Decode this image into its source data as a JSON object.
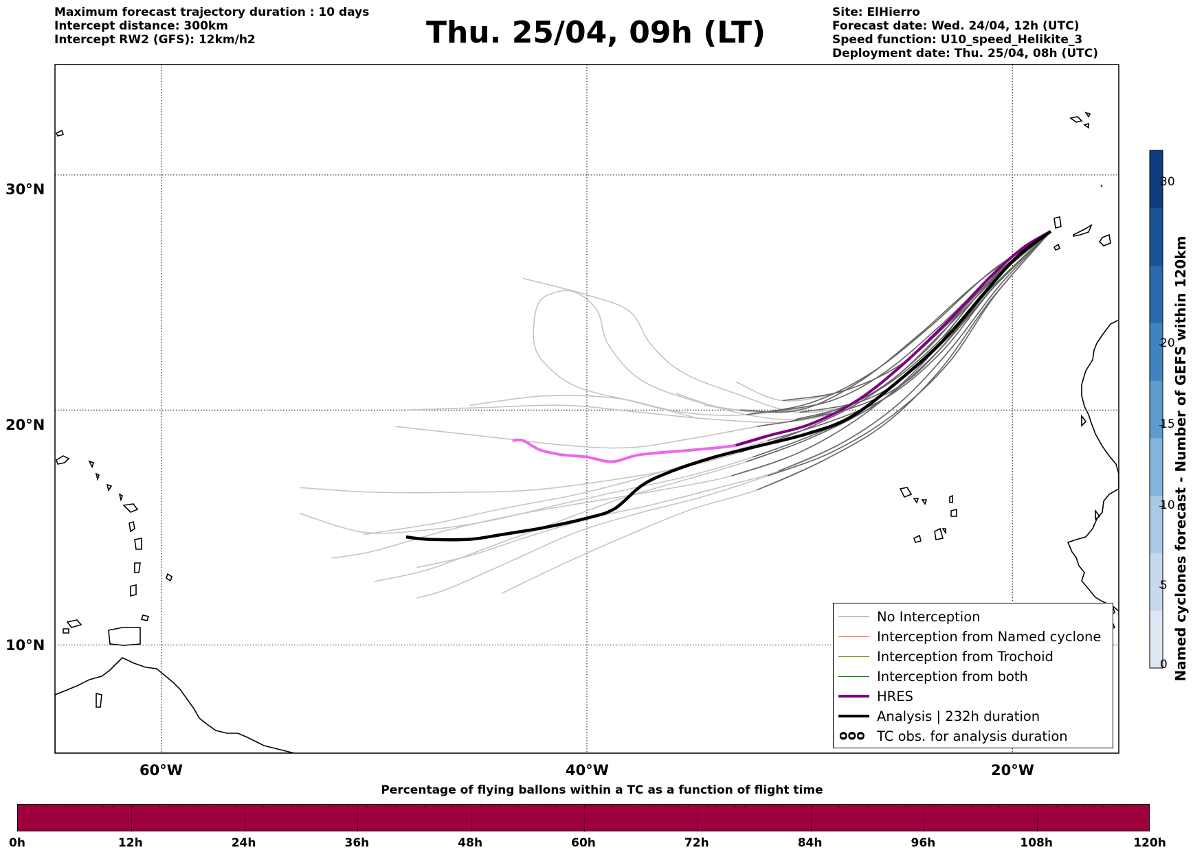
{
  "header": {
    "left": [
      "Maximum forecast trajectory duration : 10 days",
      "Intercept distance: 300km",
      "Intercept RW2 (GFS):  12km/h2"
    ],
    "title": "Thu. 25/04, 09h (LT)",
    "right": [
      "Site: ElHierro",
      "Forecast date: Wed. 24/04, 12h (UTC)",
      "Speed function: U10_speed_Helikite_3",
      "Deployment date: Thu. 25/04, 08h (UTC)"
    ]
  },
  "map": {
    "lon_ticks": [
      "60°W",
      "40°W",
      "20°W"
    ],
    "lat_ticks": [
      "30°N",
      "20°N",
      "10°N"
    ],
    "lon_range": [
      -65,
      -15
    ],
    "lat_range": [
      5.4,
      34.7
    ],
    "site": {
      "lon": -18.2,
      "lat": 27.6
    },
    "colors": {
      "no_interception": "#666666",
      "no_interception_light": "#c4c4c4",
      "hres": "#800080",
      "hres_projected": "#ee66ee",
      "analysis": "#000000",
      "named_cyclone": "#ff5a1f",
      "trochoid": "#808000",
      "both": "#008000"
    }
  },
  "chart_data": {
    "type": "line",
    "hres": [
      [
        -18.2,
        27.6
      ],
      [
        -19.5,
        26.9
      ],
      [
        -21.0,
        25.7
      ],
      [
        -23.0,
        23.8
      ],
      [
        -25.2,
        21.9
      ],
      [
        -27.3,
        20.4
      ],
      [
        -29.5,
        19.4
      ],
      [
        -31.5,
        18.9
      ],
      [
        -33.0,
        18.5
      ],
      [
        -35.0,
        18.3
      ],
      [
        -37.5,
        18.1
      ],
      [
        -38.8,
        17.8
      ],
      [
        -40.0,
        18.0
      ],
      [
        -41.2,
        18.1
      ],
      [
        -42.2,
        18.3
      ],
      [
        -43.0,
        18.7
      ],
      [
        -43.5,
        18.7
      ]
    ],
    "analysis": [
      [
        -18.2,
        27.6
      ],
      [
        -19.8,
        26.5
      ],
      [
        -21.3,
        25.0
      ],
      [
        -23.2,
        23.0
      ],
      [
        -25.4,
        21.2
      ],
      [
        -27.6,
        19.7
      ],
      [
        -29.6,
        19.0
      ],
      [
        -31.8,
        18.5
      ],
      [
        -34.0,
        18.0
      ],
      [
        -36.0,
        17.4
      ],
      [
        -37.4,
        16.8
      ],
      [
        -38.7,
        15.8
      ],
      [
        -40.0,
        15.4
      ],
      [
        -42.0,
        15.0
      ],
      [
        -44.0,
        14.7
      ],
      [
        -45.5,
        14.5
      ],
      [
        -47.5,
        14.5
      ],
      [
        -48.5,
        14.6
      ]
    ],
    "members": [
      [
        [
          -18.2,
          27.6
        ],
        [
          -20.8,
          25.8
        ],
        [
          -23.5,
          23.5
        ],
        [
          -26.0,
          21.6
        ],
        [
          -28.5,
          20.4
        ],
        [
          -31.5,
          19.9
        ],
        [
          -34.5,
          20.2
        ]
      ],
      [
        [
          -18.2,
          27.6
        ],
        [
          -20.5,
          26.0
        ],
        [
          -23.0,
          23.7
        ],
        [
          -25.3,
          21.9
        ],
        [
          -28.0,
          20.8
        ],
        [
          -30.8,
          20.4
        ],
        [
          -33.0,
          21.2
        ]
      ],
      [
        [
          -18.2,
          27.6
        ],
        [
          -21.0,
          25.5
        ],
        [
          -23.6,
          22.8
        ],
        [
          -26.2,
          20.9
        ],
        [
          -29.0,
          19.8
        ],
        [
          -32.0,
          19.3
        ],
        [
          -35.0,
          18.8
        ],
        [
          -38.0,
          18.4
        ],
        [
          -41.0,
          18.5
        ],
        [
          -45.0,
          18.9
        ],
        [
          -49.0,
          19.3
        ]
      ],
      [
        [
          -18.2,
          27.6
        ],
        [
          -20.9,
          25.2
        ],
        [
          -23.3,
          22.5
        ],
        [
          -25.8,
          20.6
        ],
        [
          -28.6,
          19.5
        ],
        [
          -31.5,
          18.7
        ],
        [
          -34.5,
          17.9
        ],
        [
          -37.5,
          17.1
        ],
        [
          -40.5,
          16.4
        ],
        [
          -44.0,
          15.8
        ],
        [
          -47.0,
          15.2
        ],
        [
          -50.5,
          14.7
        ]
      ],
      [
        [
          -18.2,
          27.6
        ],
        [
          -21.2,
          25.0
        ],
        [
          -23.8,
          22.2
        ],
        [
          -26.5,
          20.2
        ],
        [
          -29.5,
          18.8
        ],
        [
          -32.5,
          17.8
        ],
        [
          -35.5,
          17.0
        ],
        [
          -38.5,
          16.2
        ],
        [
          -41.5,
          15.2
        ],
        [
          -44.5,
          14.2
        ],
        [
          -47.5,
          13.2
        ],
        [
          -50.0,
          12.7
        ]
      ],
      [
        [
          -18.2,
          27.6
        ],
        [
          -21.0,
          24.7
        ],
        [
          -23.4,
          21.7
        ],
        [
          -26.0,
          19.4
        ],
        [
          -29.0,
          17.8
        ],
        [
          -32.0,
          16.6
        ],
        [
          -35.0,
          15.8
        ],
        [
          -38.0,
          14.7
        ],
        [
          -41.0,
          13.5
        ],
        [
          -44.0,
          12.2
        ]
      ],
      [
        [
          -18.2,
          27.6
        ],
        [
          -20.6,
          25.5
        ],
        [
          -22.8,
          23.2
        ],
        [
          -25.0,
          21.2
        ],
        [
          -27.5,
          20.1
        ],
        [
          -30.5,
          19.5
        ],
        [
          -34.0,
          19.6
        ],
        [
          -37.5,
          19.9
        ],
        [
          -41.0,
          20.2
        ],
        [
          -45.0,
          20.1
        ],
        [
          -48.5,
          20.0
        ]
      ],
      [
        [
          -18.2,
          27.6
        ],
        [
          -20.8,
          24.9
        ],
        [
          -23.0,
          22.0
        ],
        [
          -25.6,
          19.8
        ],
        [
          -28.5,
          18.2
        ],
        [
          -31.5,
          17.2
        ],
        [
          -34.6,
          16.3
        ],
        [
          -37.6,
          15.6
        ],
        [
          -40.5,
          14.8
        ],
        [
          -43.5,
          13.6
        ],
        [
          -46.5,
          12.4
        ],
        [
          -48.0,
          12.0
        ]
      ],
      [
        [
          -18.2,
          27.6
        ],
        [
          -21.3,
          25.3
        ],
        [
          -24.0,
          22.6
        ],
        [
          -26.7,
          20.6
        ],
        [
          -29.7,
          19.2
        ],
        [
          -32.8,
          18.2
        ],
        [
          -35.8,
          17.5
        ],
        [
          -39.0,
          17.0
        ],
        [
          -42.5,
          16.6
        ],
        [
          -46.0,
          16.5
        ],
        [
          -50.0,
          16.5
        ],
        [
          -53.5,
          16.7
        ]
      ],
      [
        [
          -18.2,
          27.6
        ],
        [
          -20.4,
          25.9
        ],
        [
          -22.5,
          23.6
        ],
        [
          -24.8,
          21.6
        ],
        [
          -27.0,
          20.4
        ],
        [
          -30.0,
          19.9
        ],
        [
          -33.0,
          20.7
        ],
        [
          -35.5,
          21.6
        ],
        [
          -37.0,
          22.8
        ],
        [
          -38.0,
          24.2
        ],
        [
          -40.0,
          24.9
        ],
        [
          -43.0,
          25.6
        ]
      ],
      [
        [
          -18.2,
          27.6
        ],
        [
          -21.5,
          25.0
        ],
        [
          -24.2,
          22.0
        ],
        [
          -27.0,
          19.8
        ],
        [
          -30.0,
          18.2
        ],
        [
          -33.2,
          17.2
        ],
        [
          -36.5,
          16.6
        ],
        [
          -39.8,
          16.1
        ],
        [
          -43.0,
          15.6
        ],
        [
          -46.5,
          14.9
        ],
        [
          -50.0,
          14.0
        ],
        [
          -52.0,
          13.7
        ]
      ],
      [
        [
          -18.2,
          27.6
        ],
        [
          -21.0,
          25.9
        ],
        [
          -23.8,
          23.6
        ],
        [
          -26.6,
          21.6
        ],
        [
          -29.5,
          20.3
        ],
        [
          -32.5,
          19.8
        ],
        [
          -35.5,
          19.9
        ],
        [
          -38.6,
          20.5
        ],
        [
          -42.0,
          20.6
        ],
        [
          -45.5,
          20.2
        ]
      ],
      [
        [
          -18.2,
          27.6
        ],
        [
          -20.6,
          25.3
        ],
        [
          -22.9,
          22.6
        ],
        [
          -25.3,
          20.3
        ],
        [
          -28.0,
          18.6
        ],
        [
          -31.0,
          17.4
        ],
        [
          -33.8,
          16.7
        ],
        [
          -36.8,
          16.0
        ],
        [
          -39.8,
          15.4
        ],
        [
          -42.8,
          14.6
        ],
        [
          -45.5,
          13.8
        ],
        [
          -48.0,
          13.3
        ]
      ],
      [
        [
          -18.2,
          27.6
        ],
        [
          -21.4,
          25.6
        ],
        [
          -24.4,
          23.2
        ],
        [
          -27.2,
          21.2
        ],
        [
          -30.0,
          20.0
        ],
        [
          -32.8,
          20.0
        ],
        [
          -35.0,
          20.4
        ],
        [
          -37.5,
          21.3
        ],
        [
          -39.0,
          22.8
        ],
        [
          -39.5,
          24.2
        ],
        [
          -40.5,
          25.0
        ],
        [
          -41.5,
          25.0
        ],
        [
          -42.3,
          24.5
        ],
        [
          -42.5,
          23.0
        ],
        [
          -42.0,
          22.0
        ],
        [
          -40.5,
          21.0
        ],
        [
          -38.0,
          20.4
        ],
        [
          -35.0,
          19.7
        ]
      ],
      [
        [
          -18.2,
          27.6
        ],
        [
          -21.0,
          25.1
        ],
        [
          -23.6,
          22.4
        ],
        [
          -26.3,
          20.3
        ],
        [
          -29.2,
          19.0
        ],
        [
          -32.2,
          18.0
        ],
        [
          -35.2,
          17.2
        ],
        [
          -38.2,
          16.6
        ],
        [
          -41.2,
          16.0
        ],
        [
          -44.5,
          15.3
        ],
        [
          -47.5,
          14.9
        ],
        [
          -50.5,
          14.8
        ],
        [
          -53.5,
          15.6
        ]
      ],
      [
        [
          -18.2,
          27.6
        ],
        [
          -20.7,
          25.7
        ],
        [
          -23.2,
          23.4
        ],
        [
          -25.5,
          21.4
        ],
        [
          -27.7,
          20.2
        ],
        [
          -30.2,
          19.6
        ],
        [
          -33.0,
          19.9
        ],
        [
          -35.8,
          20.7
        ]
      ]
    ],
    "dark_member_count": 16
  },
  "legend": {
    "items": [
      {
        "label": "No Interception",
        "color": "#7a7a7a",
        "width": 1
      },
      {
        "label": "Interception from Named cyclone",
        "color": "#ff5a1f",
        "width": 1
      },
      {
        "label": "Interception from Trochoid",
        "color": "#808000",
        "width": 1
      },
      {
        "label": "Interception from both",
        "color": "#008000",
        "width": 1
      },
      {
        "label": "HRES",
        "color": "#800080",
        "width": 4
      },
      {
        "label": "Analysis | 232h duration",
        "color": "#000000",
        "width": 4
      }
    ],
    "tc_label": "TC obs. for analysis duration",
    "tc_symbol": "ᴑᴑᴑ"
  },
  "colorbar": {
    "label": "Named cyclones forecast - Number of GEFS within 120km",
    "ticks": [
      "0",
      "5",
      "10",
      "15",
      "20",
      "30"
    ],
    "tick_values": [
      0,
      5,
      10,
      15,
      20,
      30
    ],
    "range": [
      0,
      32
    ],
    "colors": [
      "#dde8f5",
      "#c7d9ee",
      "#a9c9e4",
      "#84b4da",
      "#5e9ccc",
      "#3f84bf",
      "#2a6aae",
      "#1a5298",
      "#0e3d7d"
    ]
  },
  "percentage": {
    "title": "Percentage of flying ballons within a TC as a function of flight time",
    "ticks": [
      "0h",
      "12h",
      "24h",
      "36h",
      "48h",
      "60h",
      "72h",
      "84h",
      "96h",
      "108h",
      "120h"
    ],
    "bar_color": "#9d003c"
  }
}
